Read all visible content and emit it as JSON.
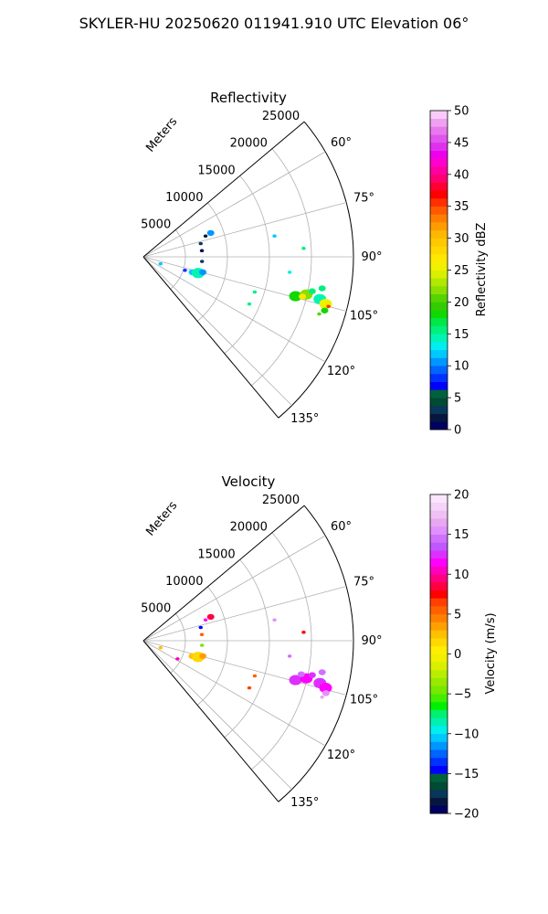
{
  "suptitle": "SKYLER-HU  20250620  011941.910 UTC Elevation 06°",
  "range_label": "Meters",
  "chart_data": [
    {
      "type": "polar_sector",
      "title": "Reflectivity",
      "range_ticks": [
        "5000",
        "10000",
        "15000",
        "20000",
        "25000"
      ],
      "range_max": 25000,
      "azimuth_ticks": [
        "60°",
        "75°",
        "90°",
        "105°",
        "120°",
        "135°"
      ],
      "azimuth_range": [
        50,
        140
      ],
      "colorbar": {
        "label": "Reflectivity dBZ",
        "min": 0,
        "max": 50,
        "ticks": [
          "0",
          "5",
          "10",
          "15",
          "20",
          "25",
          "30",
          "35",
          "40",
          "45",
          "50"
        ]
      },
      "echoes": [
        {
          "az": 112.0,
          "range": 2200,
          "value": 12,
          "size": "s"
        },
        {
          "az": 107.5,
          "range": 6100,
          "value": 12,
          "size": "m"
        },
        {
          "az": 106.5,
          "range": 6800,
          "value": 14,
          "size": "l"
        },
        {
          "az": 104.5,
          "range": 7300,
          "value": 11,
          "size": "m"
        },
        {
          "az": 108.0,
          "range": 5200,
          "value": 8,
          "size": "s"
        },
        {
          "az": 70.5,
          "range": 8500,
          "value": 10,
          "size": "m"
        },
        {
          "az": 71.5,
          "range": 7800,
          "value": 2,
          "size": "s"
        },
        {
          "az": 77.0,
          "range": 7000,
          "value": 3,
          "size": "s"
        },
        {
          "az": 84.0,
          "range": 7000,
          "value": 1,
          "size": "s"
        },
        {
          "az": 94.5,
          "range": 7000,
          "value": 3,
          "size": "s"
        },
        {
          "az": 81.0,
          "range": 15800,
          "value": 12,
          "size": "s"
        },
        {
          "az": 87.0,
          "range": 19100,
          "value": 15,
          "size": "s"
        },
        {
          "az": 96.0,
          "range": 17500,
          "value": 13,
          "size": "s"
        },
        {
          "az": 107.5,
          "range": 13900,
          "value": 16,
          "size": "s"
        },
        {
          "az": 114.0,
          "range": 13800,
          "value": 16,
          "size": "s"
        },
        {
          "az": 104.5,
          "range": 18700,
          "value": 18,
          "size": "l"
        },
        {
          "az": 103.0,
          "range": 19900,
          "value": 22,
          "size": "l"
        },
        {
          "az": 104.0,
          "range": 19500,
          "value": 27,
          "size": "m"
        },
        {
          "az": 101.5,
          "range": 20500,
          "value": 16,
          "size": "m"
        },
        {
          "az": 100.0,
          "range": 21600,
          "value": 16,
          "size": "m"
        },
        {
          "az": 103.5,
          "range": 21600,
          "value": 14,
          "size": "l"
        },
        {
          "az": 104.5,
          "range": 22400,
          "value": 26,
          "size": "l"
        },
        {
          "az": 105.0,
          "range": 22800,
          "value": 36,
          "size": "s"
        },
        {
          "az": 106.5,
          "range": 22500,
          "value": 18,
          "size": "m"
        },
        {
          "az": 108.0,
          "range": 22000,
          "value": 20,
          "size": "s"
        }
      ]
    },
    {
      "type": "polar_sector",
      "title": "Velocity",
      "range_ticks": [
        "5000",
        "10000",
        "15000",
        "20000",
        "25000"
      ],
      "range_max": 25000,
      "azimuth_ticks": [
        "60°",
        "75°",
        "90°",
        "105°",
        "120°",
        "135°"
      ],
      "azimuth_range": [
        50,
        140
      ],
      "colorbar": {
        "label": "Velocity (m/s)",
        "min": -20,
        "max": 20,
        "ticks": [
          "−20",
          "−15",
          "−10",
          "−5",
          "0",
          "5",
          "10",
          "15",
          "20"
        ]
      },
      "echoes": [
        {
          "az": 112.0,
          "range": 2200,
          "value": 2,
          "size": "s"
        },
        {
          "az": 107.5,
          "range": 6100,
          "value": 2,
          "size": "m"
        },
        {
          "az": 106.5,
          "range": 6800,
          "value": 1,
          "size": "l"
        },
        {
          "az": 104.5,
          "range": 7300,
          "value": 3,
          "size": "m"
        },
        {
          "az": 118.0,
          "range": 4600,
          "value": 10,
          "size": "s"
        },
        {
          "az": 70.5,
          "range": 8500,
          "value": 8,
          "size": "m"
        },
        {
          "az": 71.5,
          "range": 7800,
          "value": 11,
          "size": "s"
        },
        {
          "az": 77.0,
          "range": 7000,
          "value": -15,
          "size": "s"
        },
        {
          "az": 84.0,
          "range": 7000,
          "value": 5,
          "size": "s"
        },
        {
          "az": 94.5,
          "range": 7000,
          "value": -5,
          "size": "s"
        },
        {
          "az": 81.0,
          "range": 15800,
          "value": 15,
          "size": "s"
        },
        {
          "az": 87.0,
          "range": 19100,
          "value": 7,
          "size": "s"
        },
        {
          "az": 96.0,
          "range": 17500,
          "value": 14,
          "size": "s"
        },
        {
          "az": 107.5,
          "range": 13900,
          "value": 5,
          "size": "s"
        },
        {
          "az": 114.0,
          "range": 13800,
          "value": 6,
          "size": "s"
        },
        {
          "az": 104.5,
          "range": 18700,
          "value": 12,
          "size": "l"
        },
        {
          "az": 103.0,
          "range": 19900,
          "value": 11,
          "size": "l"
        },
        {
          "az": 102.0,
          "range": 19200,
          "value": 14,
          "size": "m"
        },
        {
          "az": 101.5,
          "range": 20500,
          "value": 12,
          "size": "m"
        },
        {
          "az": 100.0,
          "range": 21600,
          "value": 14,
          "size": "m"
        },
        {
          "az": 103.5,
          "range": 21600,
          "value": 12,
          "size": "l"
        },
        {
          "az": 104.5,
          "range": 22400,
          "value": 11,
          "size": "l"
        },
        {
          "az": 106.0,
          "range": 22600,
          "value": 15,
          "size": "m"
        },
        {
          "az": 107.5,
          "range": 22300,
          "value": 16,
          "size": "s"
        }
      ]
    }
  ]
}
